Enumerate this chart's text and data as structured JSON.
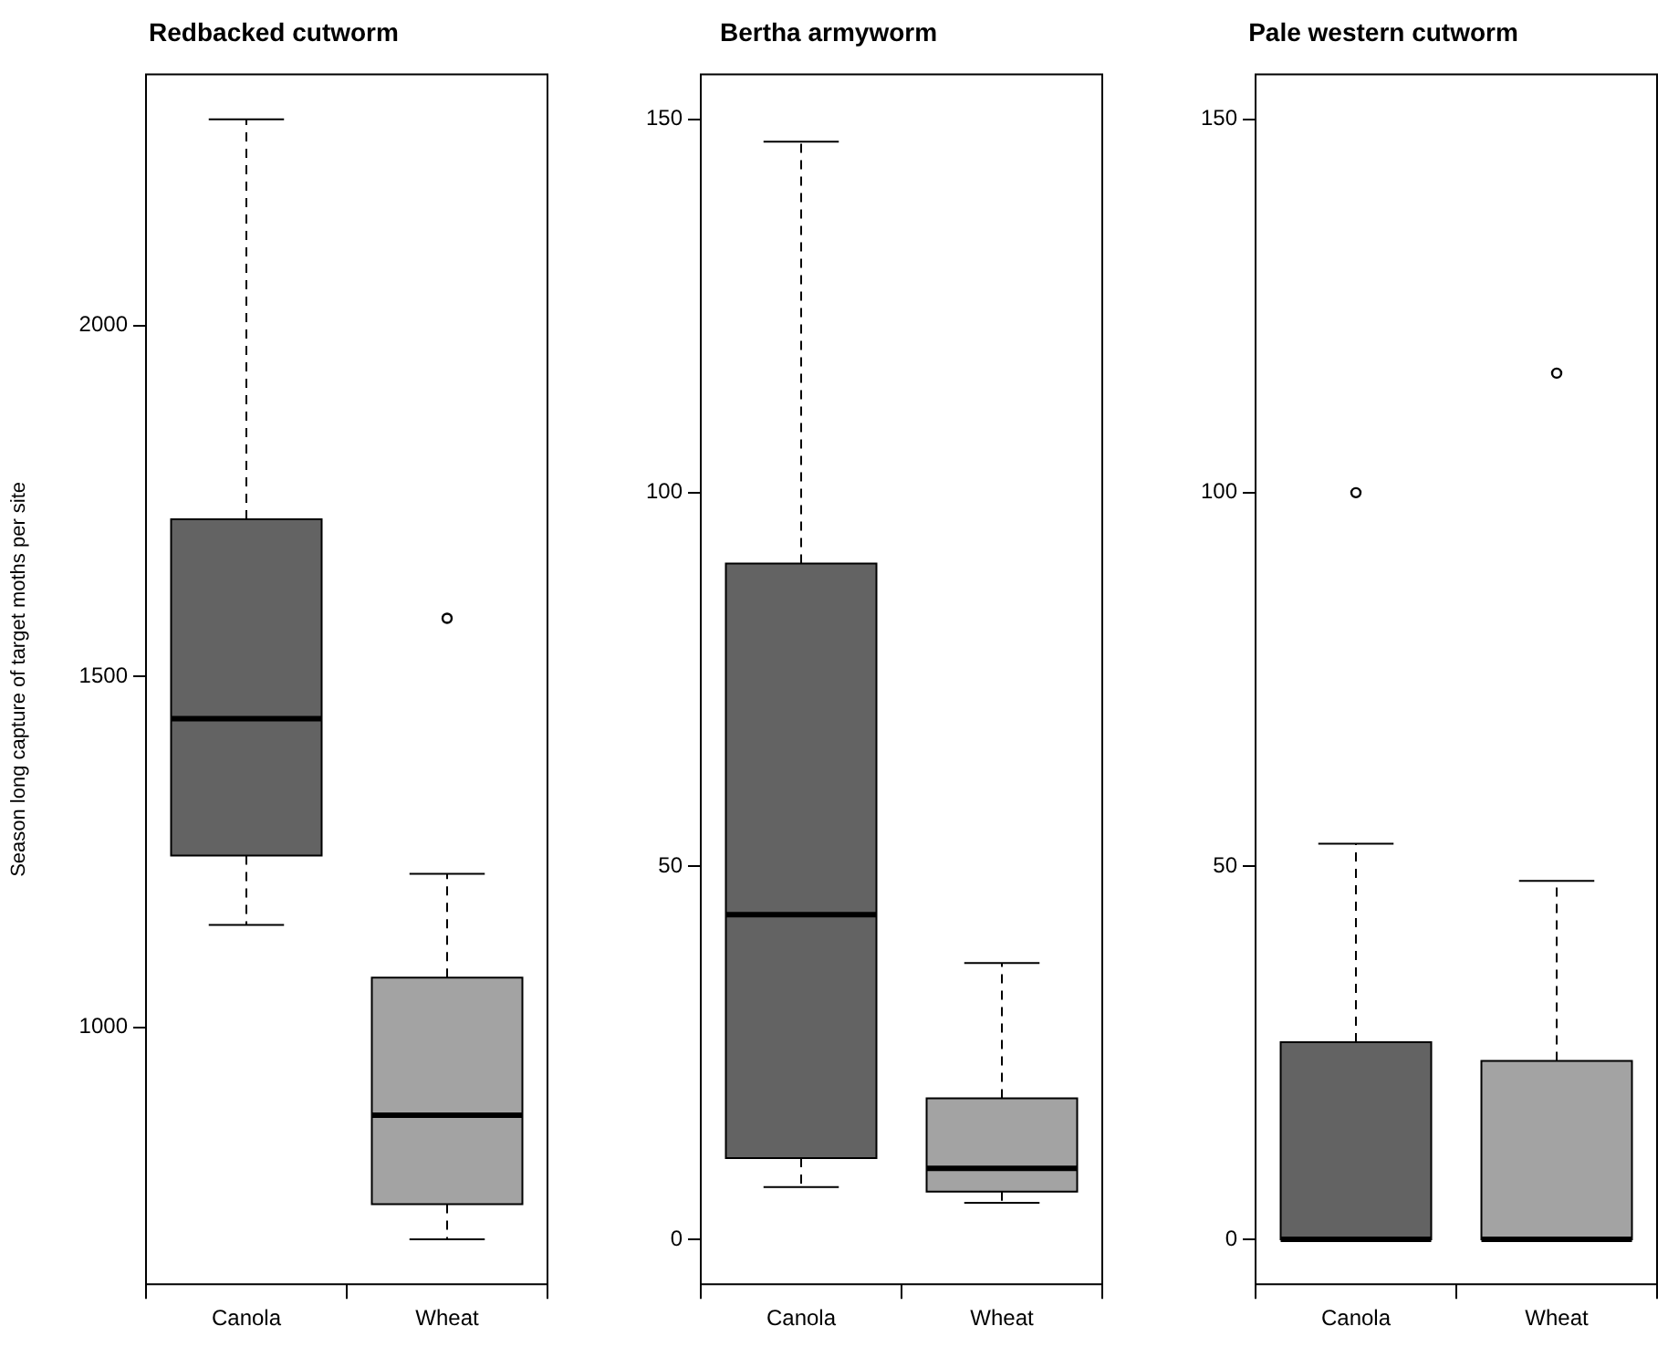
{
  "chart_data": [
    {
      "type": "box",
      "title": "Redbacked cutworm",
      "ylabel": "Season long capture of target moths per site",
      "categories": [
        "Canola",
        "Wheat"
      ],
      "colors": [
        "#636363",
        "#a3a3a3"
      ],
      "boxes": [
        {
          "low": 1146,
          "q1": 1245,
          "median": 1440,
          "q3": 1724,
          "high": 2294
        },
        {
          "low": 698,
          "q1": 748,
          "median": 875,
          "q3": 1071,
          "high": 1219,
          "outliers": [
            1583
          ]
        }
      ],
      "ylim": [
        634,
        2358
      ],
      "yticks": [
        1000,
        1500,
        2000
      ]
    },
    {
      "type": "box",
      "title": "Bertha armyworm",
      "categories": [
        "Canola",
        "Wheat"
      ],
      "colors": [
        "#636363",
        "#a3a3a3"
      ],
      "boxes": [
        {
          "low": 7,
          "q1": 10.9,
          "median": 43.5,
          "q3": 90.5,
          "high": 147
        },
        {
          "low": 4.9,
          "q1": 6.4,
          "median": 9.5,
          "q3": 18.9,
          "high": 37
        }
      ],
      "ylim": [
        -6,
        156
      ],
      "yticks": [
        0,
        50,
        100,
        150
      ]
    },
    {
      "type": "box",
      "title": "Pale western cutworm",
      "categories": [
        "Canola",
        "Wheat"
      ],
      "colors": [
        "#636363",
        "#a3a3a3"
      ],
      "boxes": [
        {
          "low": 0,
          "q1": 0,
          "median": 0,
          "q3": 26.4,
          "high": 53,
          "outliers": [
            100
          ]
        },
        {
          "low": 0,
          "q1": 0,
          "median": 0,
          "q3": 23.9,
          "high": 48,
          "outliers": [
            116
          ]
        }
      ],
      "ylim": [
        -6,
        156
      ],
      "yticks": [
        0,
        50,
        100,
        150
      ]
    }
  ]
}
